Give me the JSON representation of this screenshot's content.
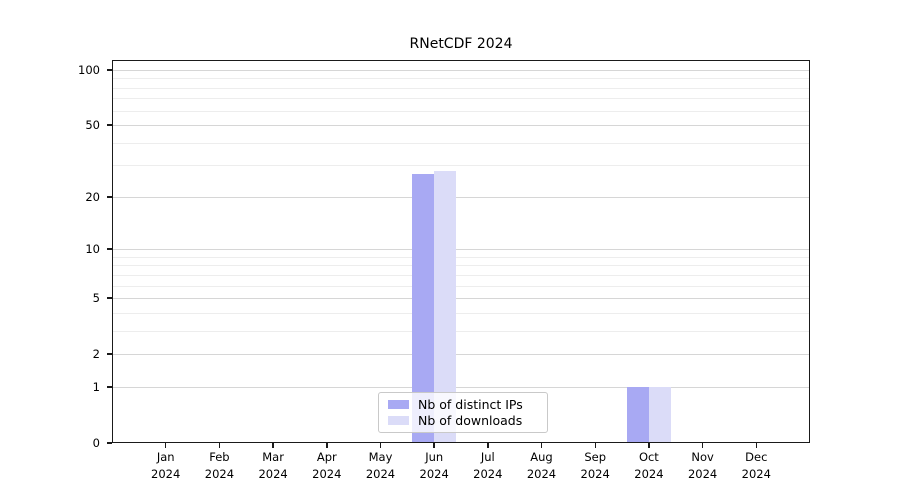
{
  "window": {
    "background": "#ffffff"
  },
  "chart_data": {
    "type": "bar",
    "title": "RNetCDF 2024",
    "x": {
      "categories": [
        "Jan",
        "Feb",
        "Mar",
        "Apr",
        "May",
        "Jun",
        "Jul",
        "Aug",
        "Sep",
        "Oct",
        "Nov",
        "Dec"
      ],
      "year": "2024"
    },
    "series": [
      {
        "name": "Nb of distinct IPs",
        "color": "#a8a9f3",
        "values": [
          0,
          0,
          0,
          0,
          0,
          27,
          0,
          0,
          0,
          1,
          0,
          0
        ]
      },
      {
        "name": "Nb of downloads",
        "color": "#dbdcf8",
        "values": [
          0,
          0,
          0,
          0,
          0,
          28,
          0,
          0,
          0,
          1,
          0,
          0
        ]
      }
    ],
    "xlabel": "",
    "ylabel": "",
    "yscale": "log1p",
    "ylim": [
      0,
      113
    ],
    "yticks": [
      0,
      1,
      2,
      5,
      10,
      20,
      50,
      100
    ],
    "minor_gridlines": [
      3,
      4,
      6,
      7,
      8,
      9,
      30,
      40,
      60,
      70,
      80,
      90
    ],
    "grid": true,
    "legend": {
      "position": "bottom-center",
      "entries": [
        "Nb of distinct IPs",
        "Nb of downloads"
      ]
    },
    "colors": {
      "distinct_ips": "#a8a9f3",
      "downloads": "#dbdcf8",
      "major_grid": "#d6d6d6",
      "minor_grid": "#ededed",
      "spine": "#1a1a1a"
    }
  }
}
